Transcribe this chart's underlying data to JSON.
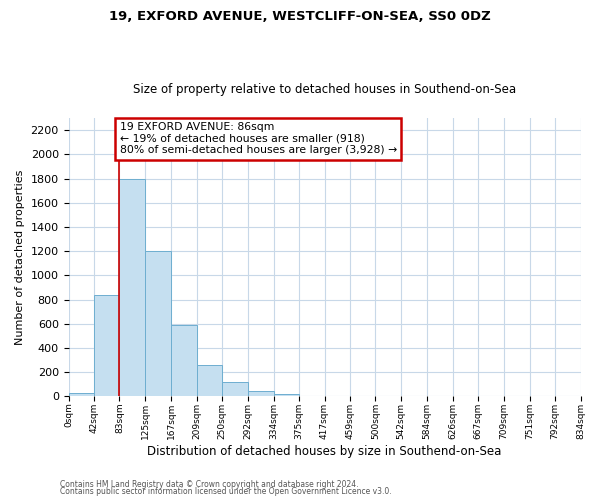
{
  "title1": "19, EXFORD AVENUE, WESTCLIFF-ON-SEA, SS0 0DZ",
  "title2": "Size of property relative to detached houses in Southend-on-Sea",
  "xlabel": "Distribution of detached houses by size in Southend-on-Sea",
  "ylabel": "Number of detached properties",
  "footnote1": "Contains HM Land Registry data © Crown copyright and database right 2024.",
  "footnote2": "Contains public sector information licensed under the Open Government Licence v3.0.",
  "bar_left_edges": [
    0,
    42,
    83,
    125,
    167,
    209,
    250,
    292,
    334,
    375,
    417,
    459,
    500,
    542,
    584,
    626,
    667,
    709,
    751,
    792
  ],
  "bar_heights": [
    25,
    840,
    1800,
    1200,
    590,
    255,
    115,
    40,
    20,
    0,
    0,
    0,
    0,
    0,
    0,
    0,
    0,
    0,
    0,
    0
  ],
  "bar_widths": [
    42,
    41,
    42,
    42,
    42,
    41,
    42,
    42,
    41,
    42,
    42,
    41,
    42,
    42,
    42,
    41,
    42,
    42,
    41,
    42
  ],
  "bar_color": "#c5dff0",
  "bar_edgecolor": "#6eaed0",
  "marker_x": 83,
  "marker_color": "#cc0000",
  "annotation_line1": "19 EXFORD AVENUE: 86sqm",
  "annotation_line2": "← 19% of detached houses are smaller (918)",
  "annotation_line3": "80% of semi-detached houses are larger (3,928) →",
  "ylim": [
    0,
    2300
  ],
  "yticks": [
    0,
    200,
    400,
    600,
    800,
    1000,
    1200,
    1400,
    1600,
    1800,
    2000,
    2200
  ],
  "xtick_labels": [
    "0sqm",
    "42sqm",
    "83sqm",
    "125sqm",
    "167sqm",
    "209sqm",
    "250sqm",
    "292sqm",
    "334sqm",
    "375sqm",
    "417sqm",
    "459sqm",
    "500sqm",
    "542sqm",
    "584sqm",
    "626sqm",
    "667sqm",
    "709sqm",
    "751sqm",
    "792sqm",
    "834sqm"
  ],
  "xtick_positions": [
    0,
    42,
    83,
    125,
    167,
    209,
    250,
    292,
    334,
    375,
    417,
    459,
    500,
    542,
    584,
    626,
    667,
    709,
    751,
    792,
    834
  ],
  "bg_color": "#ffffff",
  "grid_color": "#c8d8e8"
}
